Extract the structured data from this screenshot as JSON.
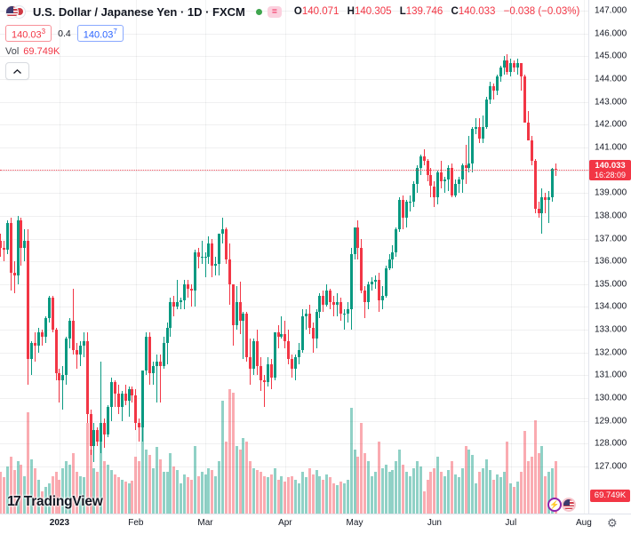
{
  "header": {
    "symbol_title": "U.S. Dollar / Japanese Yen · 1D · FXCM",
    "ohlc": {
      "o_label": "O",
      "o": "140.071",
      "h_label": "H",
      "h": "140.305",
      "l_label": "L",
      "l": "139.746",
      "c_label": "C",
      "c": "140.033",
      "change": "−0.038 (−0.03%)"
    },
    "sell_price_main": "140.03",
    "sell_price_sup": "3",
    "spread": "0.4",
    "buy_price_main": "140.03",
    "buy_price_sup": "7",
    "vol_label": "Vol",
    "vol_value": "69.749K",
    "status_badge_glyph": "="
  },
  "price_axis": {
    "ticks": [
      "147.000",
      "146.000",
      "145.000",
      "144.000",
      "143.000",
      "142.000",
      "141.000",
      "139.000",
      "138.000",
      "137.000",
      "136.000",
      "135.000",
      "134.000",
      "133.000",
      "132.000",
      "131.000",
      "130.000",
      "129.000",
      "128.000",
      "127.000"
    ],
    "last_price_label": "140.033",
    "countdown": "16:28:09",
    "volume_label": "69.749K"
  },
  "time_axis": {
    "ticks": [
      {
        "label": "2023",
        "index": 17,
        "bold": true
      },
      {
        "label": "Feb",
        "index": 39
      },
      {
        "label": "Mar",
        "index": 59
      },
      {
        "label": "Apr",
        "index": 82
      },
      {
        "label": "May",
        "index": 102
      },
      {
        "label": "Jun",
        "index": 125
      },
      {
        "label": "Jul",
        "index": 147
      },
      {
        "label": "Aug",
        "index": 168
      }
    ],
    "gear_glyph": "⚙"
  },
  "watermark": {
    "logo_glyph": "17",
    "text": "TradingView"
  },
  "event_icons": [
    {
      "name": "bolt",
      "glyph": "⚡"
    },
    {
      "name": "us-flag",
      "glyph": ""
    }
  ],
  "colors": {
    "up": "#089981",
    "down": "#F23645",
    "vol_up": "rgba(8,153,129,0.45)",
    "vol_down": "rgba(242,54,69,0.42)",
    "accent_red": "#F23645",
    "accent_blue": "#2962FF",
    "status_green": "#3fa54e",
    "text": "#131722"
  },
  "chart_data": {
    "type": "candlestick",
    "title": "U.S. Dollar / Japanese Yen, 1D, FXCM",
    "y_axis": {
      "min": 127,
      "max": 147,
      "tick_step": 1
    },
    "last_price": 140.033,
    "last_volume_k": 69.749,
    "columns": [
      "open",
      "high",
      "low",
      "close",
      "volume_k"
    ],
    "candles": [
      [
        136.9,
        137.2,
        136.2,
        136.6,
        55
      ],
      [
        136.6,
        136.9,
        136.0,
        136.5,
        48
      ],
      [
        136.5,
        137.8,
        136.3,
        137.7,
        62
      ],
      [
        137.7,
        137.9,
        134.7,
        135.5,
        75
      ],
      [
        135.5,
        136.0,
        134.6,
        135.4,
        58
      ],
      [
        135.4,
        138.0,
        135.0,
        137.8,
        70
      ],
      [
        137.8,
        137.9,
        135.8,
        136.6,
        65
      ],
      [
        136.6,
        137.4,
        136.0,
        136.9,
        50
      ],
      [
        136.9,
        137.4,
        130.6,
        131.7,
        134
      ],
      [
        131.7,
        132.5,
        131.0,
        132.4,
        72
      ],
      [
        132.4,
        132.9,
        131.6,
        132.3,
        60
      ],
      [
        132.3,
        133.1,
        132.0,
        132.9,
        45
      ],
      [
        132.9,
        133.0,
        132.3,
        132.7,
        30
      ],
      [
        132.7,
        133.6,
        132.4,
        133.5,
        35
      ],
      [
        133.5,
        134.5,
        133.3,
        134.4,
        40
      ],
      [
        134.4,
        134.5,
        132.9,
        133.0,
        50
      ],
      [
        133.0,
        133.1,
        130.8,
        131.1,
        55
      ],
      [
        131.1,
        131.3,
        129.8,
        130.8,
        45
      ],
      [
        130.8,
        131.4,
        129.5,
        131.0,
        60
      ],
      [
        131.0,
        132.7,
        130.6,
        132.6,
        70
      ],
      [
        132.6,
        133.5,
        132.2,
        133.4,
        65
      ],
      [
        133.4,
        134.8,
        131.9,
        132.1,
        80
      ],
      [
        132.1,
        132.4,
        131.3,
        131.9,
        55
      ],
      [
        131.9,
        132.5,
        131.4,
        132.3,
        50
      ],
      [
        132.3,
        132.9,
        131.8,
        132.5,
        48
      ],
      [
        132.5,
        132.9,
        128.9,
        129.3,
        120
      ],
      [
        129.3,
        129.5,
        127.5,
        127.9,
        85
      ],
      [
        127.9,
        128.9,
        127.2,
        128.6,
        60
      ],
      [
        128.6,
        128.7,
        127.9,
        128.1,
        55
      ],
      [
        128.1,
        131.6,
        127.6,
        128.9,
        110
      ],
      [
        128.9,
        129.1,
        127.8,
        128.4,
        70
      ],
      [
        128.4,
        129.7,
        128.3,
        129.6,
        65
      ],
      [
        129.6,
        130.9,
        129.0,
        130.7,
        58
      ],
      [
        130.7,
        130.8,
        129.6,
        130.2,
        52
      ],
      [
        130.2,
        130.6,
        129.3,
        129.6,
        48
      ],
      [
        129.6,
        130.3,
        129.0,
        130.2,
        45
      ],
      [
        130.2,
        130.6,
        129.7,
        129.9,
        42
      ],
      [
        129.9,
        130.5,
        129.2,
        130.4,
        40
      ],
      [
        130.4,
        130.5,
        129.8,
        130.1,
        44
      ],
      [
        130.1,
        130.4,
        128.6,
        128.9,
        75
      ],
      [
        128.9,
        129.1,
        128.1,
        128.7,
        70
      ],
      [
        128.7,
        131.2,
        128.1,
        131.2,
        115
      ],
      [
        131.2,
        132.9,
        131.0,
        132.7,
        85
      ],
      [
        132.7,
        132.9,
        130.6,
        131.1,
        78
      ],
      [
        131.1,
        131.6,
        130.6,
        131.4,
        60
      ],
      [
        131.4,
        131.9,
        129.8,
        131.6,
        88
      ],
      [
        131.6,
        131.9,
        129.8,
        131.4,
        72
      ],
      [
        131.4,
        132.7,
        131.3,
        132.4,
        55
      ],
      [
        132.4,
        133.3,
        131.5,
        133.1,
        55
      ],
      [
        133.1,
        134.4,
        132.7,
        134.2,
        80
      ],
      [
        134.2,
        134.5,
        133.6,
        134.0,
        62
      ],
      [
        134.0,
        135.2,
        133.9,
        134.2,
        58
      ],
      [
        134.2,
        134.4,
        133.9,
        134.3,
        40
      ],
      [
        134.3,
        135.2,
        133.9,
        135.0,
        52
      ],
      [
        135.0,
        135.2,
        134.4,
        134.8,
        48
      ],
      [
        134.8,
        135.0,
        134.0,
        134.7,
        45
      ],
      [
        134.7,
        136.5,
        134.0,
        136.4,
        90
      ],
      [
        136.4,
        136.6,
        135.7,
        136.2,
        50
      ],
      [
        136.2,
        136.9,
        135.9,
        136.2,
        55
      ],
      [
        136.2,
        136.4,
        135.3,
        136.2,
        52
      ],
      [
        136.2,
        137.1,
        135.9,
        136.8,
        60
      ],
      [
        136.8,
        137.0,
        135.3,
        135.8,
        58
      ],
      [
        135.8,
        136.2,
        135.4,
        135.9,
        50
      ],
      [
        135.9,
        137.2,
        135.4,
        137.2,
        70
      ],
      [
        137.2,
        137.9,
        136.8,
        137.4,
        150
      ],
      [
        137.4,
        137.5,
        135.9,
        136.1,
        95
      ],
      [
        136.1,
        136.8,
        134.1,
        135.0,
        165
      ],
      [
        135.0,
        135.0,
        132.3,
        133.2,
        160
      ],
      [
        133.2,
        134.9,
        133.0,
        134.2,
        90
      ],
      [
        134.2,
        135.1,
        132.8,
        133.4,
        85
      ],
      [
        133.4,
        133.8,
        131.7,
        133.7,
        100
      ],
      [
        133.7,
        133.8,
        131.6,
        131.8,
        95
      ],
      [
        131.8,
        132.6,
        130.6,
        131.3,
        70
      ],
      [
        131.3,
        132.6,
        131.0,
        132.5,
        60
      ],
      [
        132.5,
        133.0,
        131.0,
        131.4,
        58
      ],
      [
        131.4,
        131.8,
        130.3,
        130.8,
        55
      ],
      [
        130.8,
        131.0,
        129.6,
        130.7,
        50
      ],
      [
        130.7,
        131.8,
        130.5,
        131.5,
        48
      ],
      [
        131.5,
        131.7,
        130.4,
        130.9,
        52
      ],
      [
        130.9,
        132.9,
        130.8,
        132.9,
        60
      ],
      [
        132.9,
        133.2,
        132.2,
        132.7,
        45
      ],
      [
        132.7,
        133.6,
        132.6,
        132.8,
        50
      ],
      [
        132.8,
        133.4,
        132.2,
        132.5,
        42
      ],
      [
        132.5,
        133.0,
        131.5,
        131.7,
        48
      ],
      [
        131.7,
        131.9,
        130.9,
        131.3,
        50
      ],
      [
        131.3,
        131.9,
        130.8,
        131.8,
        45
      ],
      [
        131.8,
        132.4,
        131.5,
        132.1,
        40
      ],
      [
        132.1,
        133.9,
        132.0,
        133.6,
        55
      ],
      [
        133.6,
        133.9,
        133.0,
        133.7,
        48
      ],
      [
        133.7,
        134.1,
        132.8,
        133.1,
        60
      ],
      [
        133.1,
        133.3,
        132.0,
        132.6,
        52
      ],
      [
        132.6,
        133.9,
        132.2,
        133.8,
        58
      ],
      [
        133.8,
        134.6,
        133.5,
        134.5,
        50
      ],
      [
        134.5,
        134.7,
        133.8,
        134.1,
        45
      ],
      [
        134.1,
        135.0,
        134.0,
        134.7,
        52
      ],
      [
        134.7,
        134.8,
        133.9,
        134.2,
        48
      ],
      [
        134.2,
        134.5,
        133.6,
        134.1,
        40
      ],
      [
        134.1,
        134.6,
        133.6,
        134.2,
        38
      ],
      [
        134.2,
        134.4,
        133.4,
        133.7,
        42
      ],
      [
        133.7,
        133.9,
        133.0,
        133.7,
        40
      ],
      [
        133.7,
        134.2,
        133.3,
        133.9,
        45
      ],
      [
        133.9,
        136.6,
        133.0,
        136.3,
        140
      ],
      [
        136.3,
        137.5,
        136.1,
        137.5,
        85
      ],
      [
        137.5,
        137.8,
        136.1,
        136.6,
        75
      ],
      [
        136.6,
        137.0,
        134.6,
        134.7,
        120
      ],
      [
        134.7,
        134.9,
        133.5,
        134.2,
        80
      ],
      [
        134.2,
        135.1,
        133.9,
        135.0,
        70
      ],
      [
        135.0,
        135.3,
        134.7,
        135.1,
        50
      ],
      [
        135.1,
        135.4,
        134.8,
        135.2,
        55
      ],
      [
        135.2,
        135.5,
        133.8,
        134.3,
        95
      ],
      [
        134.3,
        134.9,
        133.9,
        134.5,
        60
      ],
      [
        134.5,
        135.8,
        134.4,
        135.7,
        65
      ],
      [
        135.7,
        136.3,
        135.6,
        136.1,
        55
      ],
      [
        136.1,
        136.7,
        135.7,
        136.4,
        58
      ],
      [
        136.4,
        137.5,
        136.2,
        137.4,
        70
      ],
      [
        137.4,
        138.8,
        137.3,
        138.7,
        85
      ],
      [
        138.7,
        138.9,
        137.4,
        137.9,
        65
      ],
      [
        137.9,
        138.7,
        137.5,
        138.6,
        55
      ],
      [
        138.6,
        138.9,
        138.2,
        138.6,
        50
      ],
      [
        138.6,
        139.5,
        138.4,
        139.4,
        60
      ],
      [
        139.4,
        140.2,
        139.0,
        140.1,
        70
      ],
      [
        140.1,
        140.7,
        139.8,
        140.6,
        62
      ],
      [
        140.6,
        140.9,
        140.2,
        140.4,
        30
      ],
      [
        140.4,
        140.5,
        139.5,
        139.8,
        45
      ],
      [
        139.8,
        140.1,
        138.8,
        139.3,
        55
      ],
      [
        139.3,
        139.5,
        138.4,
        138.8,
        60
      ],
      [
        138.8,
        140.0,
        138.5,
        139.9,
        75
      ],
      [
        139.9,
        140.4,
        139.2,
        139.5,
        55
      ],
      [
        139.5,
        139.7,
        139.0,
        139.6,
        50
      ],
      [
        139.6,
        140.2,
        139.1,
        140.1,
        58
      ],
      [
        140.1,
        140.3,
        138.8,
        138.9,
        70
      ],
      [
        138.9,
        139.6,
        138.8,
        139.4,
        52
      ],
      [
        139.4,
        139.7,
        139.0,
        139.6,
        48
      ],
      [
        139.6,
        140.3,
        139.0,
        140.2,
        60
      ],
      [
        140.2,
        141.1,
        139.4,
        140.1,
        90
      ],
      [
        140.1,
        141.5,
        139.9,
        140.3,
        85
      ],
      [
        140.3,
        141.9,
        139.9,
        141.8,
        78
      ],
      [
        141.8,
        142.3,
        141.6,
        141.9,
        40
      ],
      [
        141.9,
        142.3,
        141.2,
        141.4,
        55
      ],
      [
        141.4,
        142.4,
        141.2,
        141.9,
        60
      ],
      [
        141.9,
        143.2,
        141.8,
        143.1,
        72
      ],
      [
        143.1,
        143.9,
        142.9,
        143.7,
        58
      ],
      [
        143.7,
        143.8,
        143.1,
        143.5,
        45
      ],
      [
        143.5,
        144.2,
        143.3,
        144.1,
        52
      ],
      [
        144.1,
        144.6,
        143.9,
        144.5,
        48
      ],
      [
        144.5,
        145.0,
        144.2,
        144.8,
        55
      ],
      [
        144.8,
        145.1,
        144.2,
        144.3,
        95
      ],
      [
        144.3,
        144.9,
        144.1,
        144.7,
        40
      ],
      [
        144.7,
        144.8,
        144.3,
        144.5,
        35
      ],
      [
        144.5,
        144.9,
        144.2,
        144.7,
        42
      ],
      [
        144.7,
        144.7,
        143.5,
        144.1,
        55
      ],
      [
        144.1,
        144.2,
        142.1,
        142.1,
        110
      ],
      [
        142.1,
        142.6,
        141.3,
        141.3,
        70
      ],
      [
        141.3,
        141.5,
        140.2,
        140.4,
        75
      ],
      [
        140.4,
        140.5,
        138.1,
        138.3,
        124
      ],
      [
        138.3,
        138.6,
        137.9,
        138.1,
        80
      ],
      [
        138.1,
        139.2,
        137.2,
        138.8,
        90
      ],
      [
        138.8,
        139.0,
        138.1,
        138.7,
        50
      ],
      [
        138.7,
        139.1,
        137.7,
        138.8,
        55
      ],
      [
        138.8,
        140.1,
        138.6,
        140.07,
        60
      ],
      [
        140.071,
        140.305,
        139.746,
        140.033,
        69.749
      ]
    ]
  }
}
